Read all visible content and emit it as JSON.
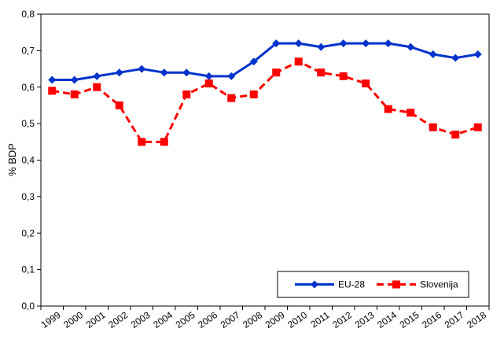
{
  "chart_data": {
    "type": "line",
    "ylabel": "% BDP",
    "xlabel": "",
    "categories": [
      "1999",
      "2000",
      "2001",
      "2002",
      "2003",
      "2004",
      "2005",
      "2006",
      "2007",
      "2008",
      "2009",
      "2010",
      "2011",
      "2012",
      "2013",
      "2014",
      "2015",
      "2016",
      "2017",
      "2018"
    ],
    "ylim": [
      0,
      0.8
    ],
    "yticks": [
      "0,0",
      "0,1",
      "0,2",
      "0,3",
      "0,4",
      "0,5",
      "0,6",
      "0,7",
      "0,8"
    ],
    "grid": false,
    "legend_position": "bottom-right",
    "series": [
      {
        "name": "EU-28",
        "color": "#0033CC",
        "style": "solid",
        "marker": "diamond",
        "values": [
          0.62,
          0.62,
          0.63,
          0.64,
          0.65,
          0.64,
          0.64,
          0.63,
          0.63,
          0.67,
          0.72,
          0.72,
          0.71,
          0.72,
          0.72,
          0.72,
          0.71,
          0.69,
          0.68,
          0.69
        ]
      },
      {
        "name": "Slovenija",
        "color": "#FF0000",
        "style": "dashed",
        "marker": "square",
        "values": [
          0.59,
          0.58,
          0.6,
          0.55,
          0.45,
          0.45,
          0.58,
          0.61,
          0.57,
          0.58,
          0.64,
          0.67,
          0.64,
          0.63,
          0.61,
          0.54,
          0.53,
          0.49,
          0.47,
          0.49
        ]
      }
    ]
  }
}
